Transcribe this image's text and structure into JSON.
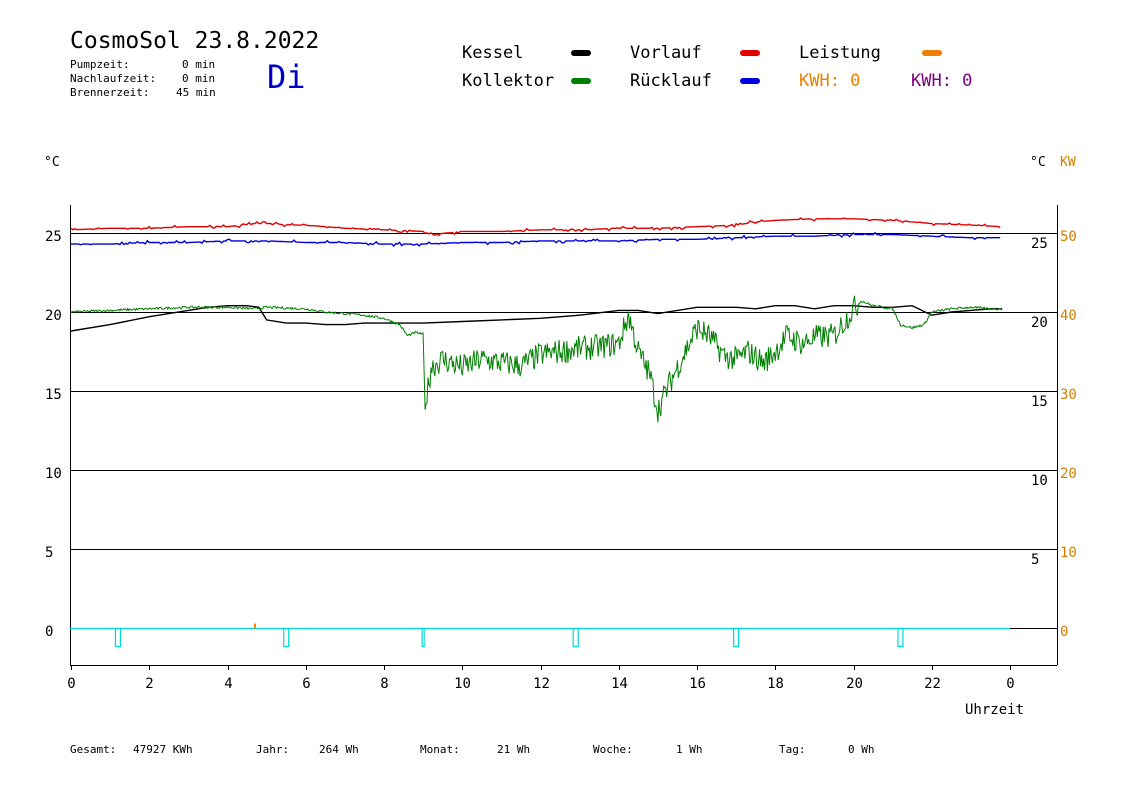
{
  "header": {
    "title": "CosmoSol 23.8.2022",
    "day": "Di",
    "stats": [
      {
        "label": "Pumpzeit:",
        "value": "0 min"
      },
      {
        "label": "Nachlaufzeit:",
        "value": "0 min"
      },
      {
        "label": "Brennerzeit:",
        "value": "45 min"
      }
    ]
  },
  "legend": {
    "kessel": {
      "label": "Kessel",
      "color": "#000000"
    },
    "vorlauf": {
      "label": "Vorlauf",
      "color": "#e00000"
    },
    "leistung": {
      "label": "Leistung",
      "color": "#f08000"
    },
    "kollektor": {
      "label": "Kollektor",
      "color": "#008000"
    },
    "ruecklauf": {
      "label": "Rücklauf",
      "color": "#0000e0"
    },
    "kwh1": {
      "text": "KWH: 0",
      "color": "#f08000"
    },
    "kwh2": {
      "text": "KWH: 0",
      "color": "#800080"
    }
  },
  "footer": [
    {
      "label": "Gesamt:",
      "value": "47927 KWh"
    },
    {
      "label": "Jahr:",
      "value": "264 Wh"
    },
    {
      "label": "Monat:",
      "value": "21 Wh"
    },
    {
      "label": "Woche:",
      "value": "1 Wh"
    },
    {
      "label": "Tag:",
      "value": "0 Wh"
    }
  ],
  "chart_data": {
    "type": "line",
    "xlabel": "Uhrzeit",
    "x_ticks": [
      "0",
      "2",
      "4",
      "6",
      "8",
      "10",
      "12",
      "14",
      "16",
      "18",
      "20",
      "22",
      "0"
    ],
    "xlim": [
      0,
      24
    ],
    "y_left": {
      "label": "°C",
      "ylim": [
        -1.5,
        25
      ],
      "ticks": [
        0,
        5,
        10,
        15,
        20,
        25
      ]
    },
    "y_right_temp": {
      "label": "°C",
      "ticks": [
        5,
        10,
        15,
        20,
        25
      ]
    },
    "y_right_power": {
      "label": "KW",
      "ticks": [
        0,
        10,
        20,
        30,
        40,
        50
      ],
      "color": "#d08000"
    },
    "grid_lines_y": [
      0,
      5,
      10,
      15,
      20,
      25
    ],
    "series": [
      {
        "name": "Vorlauf",
        "color": "#e00000",
        "x": [
          0,
          1,
          2,
          3,
          4,
          4.7,
          5.2,
          5.5,
          6,
          7,
          8,
          9,
          9.2,
          10,
          11,
          12,
          13,
          14,
          15,
          16,
          17,
          17.5,
          18,
          19,
          20,
          21,
          22,
          23,
          23.8
        ],
        "y": [
          25.2,
          25.3,
          25.3,
          25.4,
          25.4,
          25.6,
          25.6,
          25.5,
          25.5,
          25.3,
          25.2,
          25.1,
          24.9,
          25.1,
          25.1,
          25.2,
          25.2,
          25.3,
          25.3,
          25.4,
          25.5,
          25.7,
          25.8,
          25.9,
          25.9,
          25.8,
          25.6,
          25.5,
          25.4
        ]
      },
      {
        "name": "Rücklauf",
        "color": "#0000e0",
        "x": [
          0,
          1,
          2,
          3,
          4,
          5,
          6,
          7,
          8,
          9,
          10,
          11,
          12,
          13,
          14,
          15,
          16,
          17,
          18,
          19,
          20,
          21,
          22,
          23,
          23.8
        ],
        "y": [
          24.3,
          24.3,
          24.4,
          24.4,
          24.5,
          24.5,
          24.4,
          24.4,
          24.3,
          24.3,
          24.4,
          24.4,
          24.5,
          24.5,
          24.5,
          24.6,
          24.6,
          24.7,
          24.8,
          24.8,
          24.9,
          24.9,
          24.8,
          24.7,
          24.7
        ]
      },
      {
        "name": "Kessel",
        "color": "#000000",
        "x": [
          0,
          1,
          2,
          3,
          3.5,
          4,
          4.5,
          4.8,
          5,
          5.5,
          6,
          6.5,
          7,
          7.5,
          8,
          8.5,
          9,
          10,
          11,
          12,
          13,
          14,
          14.5,
          15,
          15.5,
          16,
          16.5,
          17,
          17.5,
          18,
          18.5,
          19,
          19.5,
          20,
          20.5,
          21,
          21.5,
          22,
          22.5,
          23,
          23.5,
          23.8
        ],
        "y": [
          18.8,
          19.2,
          19.7,
          20.1,
          20.3,
          20.4,
          20.4,
          20.3,
          19.5,
          19.3,
          19.3,
          19.2,
          19.2,
          19.3,
          19.3,
          19.3,
          19.3,
          19.4,
          19.5,
          19.6,
          19.8,
          20.1,
          20.1,
          19.9,
          20.1,
          20.3,
          20.3,
          20.3,
          20.2,
          20.4,
          20.4,
          20.2,
          20.4,
          20.4,
          20.3,
          20.3,
          20.4,
          19.8,
          20.0,
          20.1,
          20.2,
          20.2
        ]
      },
      {
        "name": "Kollektor",
        "color": "#008000",
        "x": [
          0,
          1,
          2,
          3,
          4,
          4.7,
          5,
          6,
          6.5,
          7,
          7.5,
          8,
          8.4,
          8.6,
          8.8,
          9.0,
          9.05,
          9.2,
          9.5,
          10,
          10.5,
          11,
          11.5,
          12,
          12.5,
          13,
          13.5,
          14,
          14.25,
          14.5,
          14.8,
          15,
          15.3,
          15.6,
          16,
          16.3,
          16.7,
          17,
          17.3,
          17.7,
          18,
          18.3,
          18.7,
          19,
          19.5,
          20,
          20.2,
          20.5,
          21,
          21.2,
          21.5,
          21.8,
          22,
          22.5,
          23,
          23.5,
          23.8
        ],
        "y": [
          20.0,
          20.1,
          20.2,
          20.3,
          20.3,
          20.2,
          20.3,
          20.2,
          20.0,
          19.9,
          19.8,
          19.6,
          19.2,
          18.5,
          18.7,
          18.6,
          13.8,
          16.5,
          17.0,
          16.5,
          17.0,
          16.8,
          16.6,
          17.3,
          17.5,
          17.7,
          17.8,
          18.0,
          19.8,
          17.5,
          16.0,
          13.8,
          15.5,
          17.0,
          19.0,
          18.5,
          17.2,
          17.0,
          17.5,
          16.8,
          17.5,
          18.5,
          18.0,
          18.4,
          18.5,
          20.2,
          20.7,
          20.4,
          20.2,
          19.2,
          19.0,
          19.2,
          20.0,
          20.2,
          20.3,
          20.2,
          20.2
        ]
      }
    ],
    "kollektor_noise": true,
    "annotations": "cyan pulses on 0 line at ~1.2, 5.5, 9.0, 12.9, 17.0, 21.2 h; orange spike at 4.7 h"
  }
}
